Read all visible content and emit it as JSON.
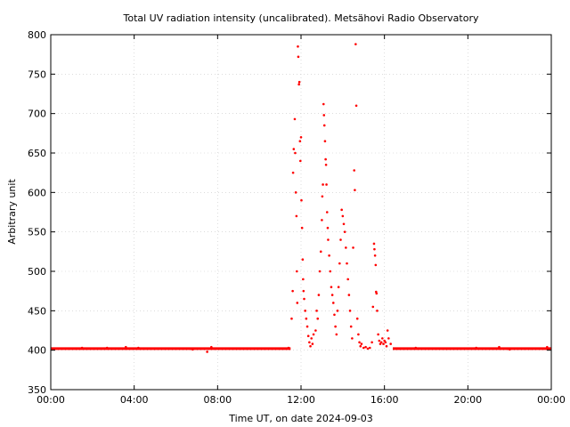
{
  "chart_data": {
    "type": "scatter",
    "title": "Total UV radiation intensity (uncalibrated). Metsähovi Radio Observatory",
    "xlabel": "Time UT, on date 2024-09-03",
    "ylabel": "Arbitrary unit",
    "xlim": [
      0,
      24
    ],
    "ylim": [
      350,
      800
    ],
    "xticks": [
      {
        "value": 0,
        "label": "00:00"
      },
      {
        "value": 4,
        "label": "04:00"
      },
      {
        "value": 8,
        "label": "08:00"
      },
      {
        "value": 12,
        "label": "12:00"
      },
      {
        "value": 16,
        "label": "16:00"
      },
      {
        "value": 20,
        "label": "20:00"
      },
      {
        "value": 24,
        "label": "00:00"
      }
    ],
    "yticks": [
      350,
      400,
      450,
      500,
      550,
      600,
      650,
      700,
      750,
      800
    ],
    "grid": true,
    "marker_color": "#ff0000",
    "baseline": {
      "value": 402,
      "x_ranges": [
        [
          0.0,
          11.5
        ],
        [
          16.4,
          24.0
        ]
      ]
    },
    "series": [
      {
        "name": "",
        "points": [
          [
            1.5,
            403
          ],
          [
            2.7,
            403
          ],
          [
            3.6,
            404
          ],
          [
            4.2,
            403
          ],
          [
            5.0,
            402
          ],
          [
            6.8,
            401
          ],
          [
            7.5,
            398
          ],
          [
            7.7,
            404
          ],
          [
            11.4,
            403
          ],
          [
            11.55,
            440
          ],
          [
            11.6,
            475
          ],
          [
            11.62,
            625
          ],
          [
            11.65,
            655
          ],
          [
            11.7,
            693
          ],
          [
            11.72,
            650
          ],
          [
            11.75,
            600
          ],
          [
            11.78,
            570
          ],
          [
            11.8,
            500
          ],
          [
            11.82,
            460
          ],
          [
            11.85,
            785
          ],
          [
            11.87,
            772
          ],
          [
            11.9,
            737
          ],
          [
            11.92,
            740
          ],
          [
            11.95,
            665
          ],
          [
            11.97,
            640
          ],
          [
            12.0,
            670
          ],
          [
            12.02,
            590
          ],
          [
            12.05,
            555
          ],
          [
            12.08,
            515
          ],
          [
            12.1,
            490
          ],
          [
            12.12,
            475
          ],
          [
            12.15,
            465
          ],
          [
            12.2,
            450
          ],
          [
            12.25,
            440
          ],
          [
            12.3,
            430
          ],
          [
            12.35,
            418
          ],
          [
            12.4,
            410
          ],
          [
            12.45,
            405
          ],
          [
            12.5,
            415
          ],
          [
            12.55,
            408
          ],
          [
            12.6,
            420
          ],
          [
            12.7,
            425
          ],
          [
            12.75,
            450
          ],
          [
            12.8,
            440
          ],
          [
            12.85,
            470
          ],
          [
            12.9,
            500
          ],
          [
            12.95,
            525
          ],
          [
            13.0,
            565
          ],
          [
            13.02,
            595
          ],
          [
            13.05,
            610
          ],
          [
            13.08,
            712
          ],
          [
            13.1,
            698
          ],
          [
            13.12,
            685
          ],
          [
            13.15,
            665
          ],
          [
            13.18,
            642
          ],
          [
            13.2,
            635
          ],
          [
            13.22,
            610
          ],
          [
            13.25,
            575
          ],
          [
            13.28,
            555
          ],
          [
            13.3,
            540
          ],
          [
            13.35,
            520
          ],
          [
            13.4,
            500
          ],
          [
            13.45,
            480
          ],
          [
            13.5,
            470
          ],
          [
            13.55,
            460
          ],
          [
            13.6,
            445
          ],
          [
            13.65,
            430
          ],
          [
            13.7,
            420
          ],
          [
            13.75,
            450
          ],
          [
            13.8,
            480
          ],
          [
            13.85,
            510
          ],
          [
            13.9,
            540
          ],
          [
            13.95,
            578
          ],
          [
            14.0,
            570
          ],
          [
            14.05,
            560
          ],
          [
            14.1,
            550
          ],
          [
            14.15,
            530
          ],
          [
            14.2,
            510
          ],
          [
            14.25,
            490
          ],
          [
            14.3,
            470
          ],
          [
            14.35,
            450
          ],
          [
            14.4,
            430
          ],
          [
            14.45,
            415
          ],
          [
            14.5,
            530
          ],
          [
            14.55,
            628
          ],
          [
            14.58,
            603
          ],
          [
            14.62,
            788
          ],
          [
            14.65,
            710
          ],
          [
            14.7,
            440
          ],
          [
            14.75,
            420
          ],
          [
            14.8,
            410
          ],
          [
            14.85,
            405
          ],
          [
            14.9,
            408
          ],
          [
            15.0,
            403
          ],
          [
            15.1,
            404
          ],
          [
            15.2,
            402
          ],
          [
            15.3,
            403
          ],
          [
            15.4,
            410
          ],
          [
            15.45,
            455
          ],
          [
            15.5,
            535
          ],
          [
            15.52,
            528
          ],
          [
            15.55,
            520
          ],
          [
            15.58,
            508
          ],
          [
            15.6,
            474
          ],
          [
            15.62,
            472
          ],
          [
            15.65,
            450
          ],
          [
            15.7,
            420
          ],
          [
            15.75,
            412
          ],
          [
            15.8,
            408
          ],
          [
            15.85,
            410
          ],
          [
            15.9,
            415
          ],
          [
            15.95,
            408
          ],
          [
            16.0,
            412
          ],
          [
            16.05,
            410
          ],
          [
            16.1,
            405
          ],
          [
            16.15,
            425
          ],
          [
            16.2,
            415
          ],
          [
            16.3,
            408
          ],
          [
            17.5,
            403
          ],
          [
            19.0,
            402
          ],
          [
            20.4,
            403
          ],
          [
            21.5,
            404
          ],
          [
            22.0,
            401
          ],
          [
            23.0,
            402
          ],
          [
            23.8,
            404
          ]
        ]
      }
    ]
  }
}
